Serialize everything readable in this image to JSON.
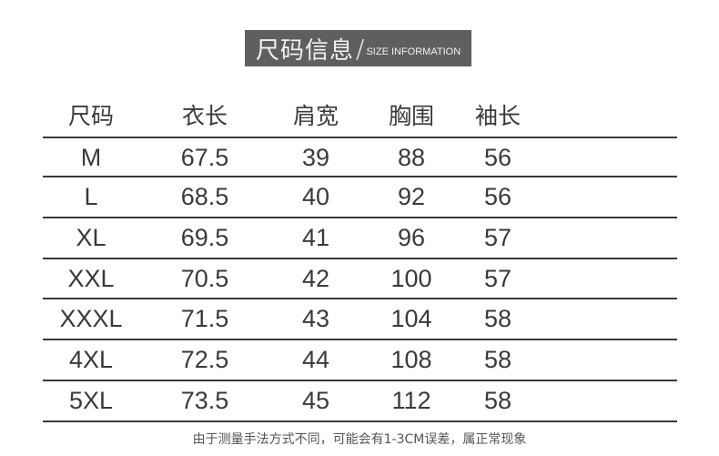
{
  "banner": {
    "title_cn": "尺码信息",
    "separator": "/",
    "title_en": "SIZE INFORMATION"
  },
  "table": {
    "headers": [
      "尺码",
      "衣长",
      "肩宽",
      "胸围",
      "袖长"
    ],
    "rows": [
      [
        "M",
        "67.5",
        "39",
        "88",
        "56"
      ],
      [
        "L",
        "68.5",
        "40",
        "92",
        "56"
      ],
      [
        "XL",
        "69.5",
        "41",
        "96",
        "57"
      ],
      [
        "XXL",
        "70.5",
        "42",
        "100",
        "57"
      ],
      [
        "XXXL",
        "71.5",
        "43",
        "104",
        "58"
      ],
      [
        "4XL",
        "72.5",
        "44",
        "108",
        "58"
      ],
      [
        "5XL",
        "73.5",
        "45",
        "112",
        "58"
      ]
    ]
  },
  "note": "由于测量手法方式不同，可能会有1-3CM误差，属正常现象"
}
